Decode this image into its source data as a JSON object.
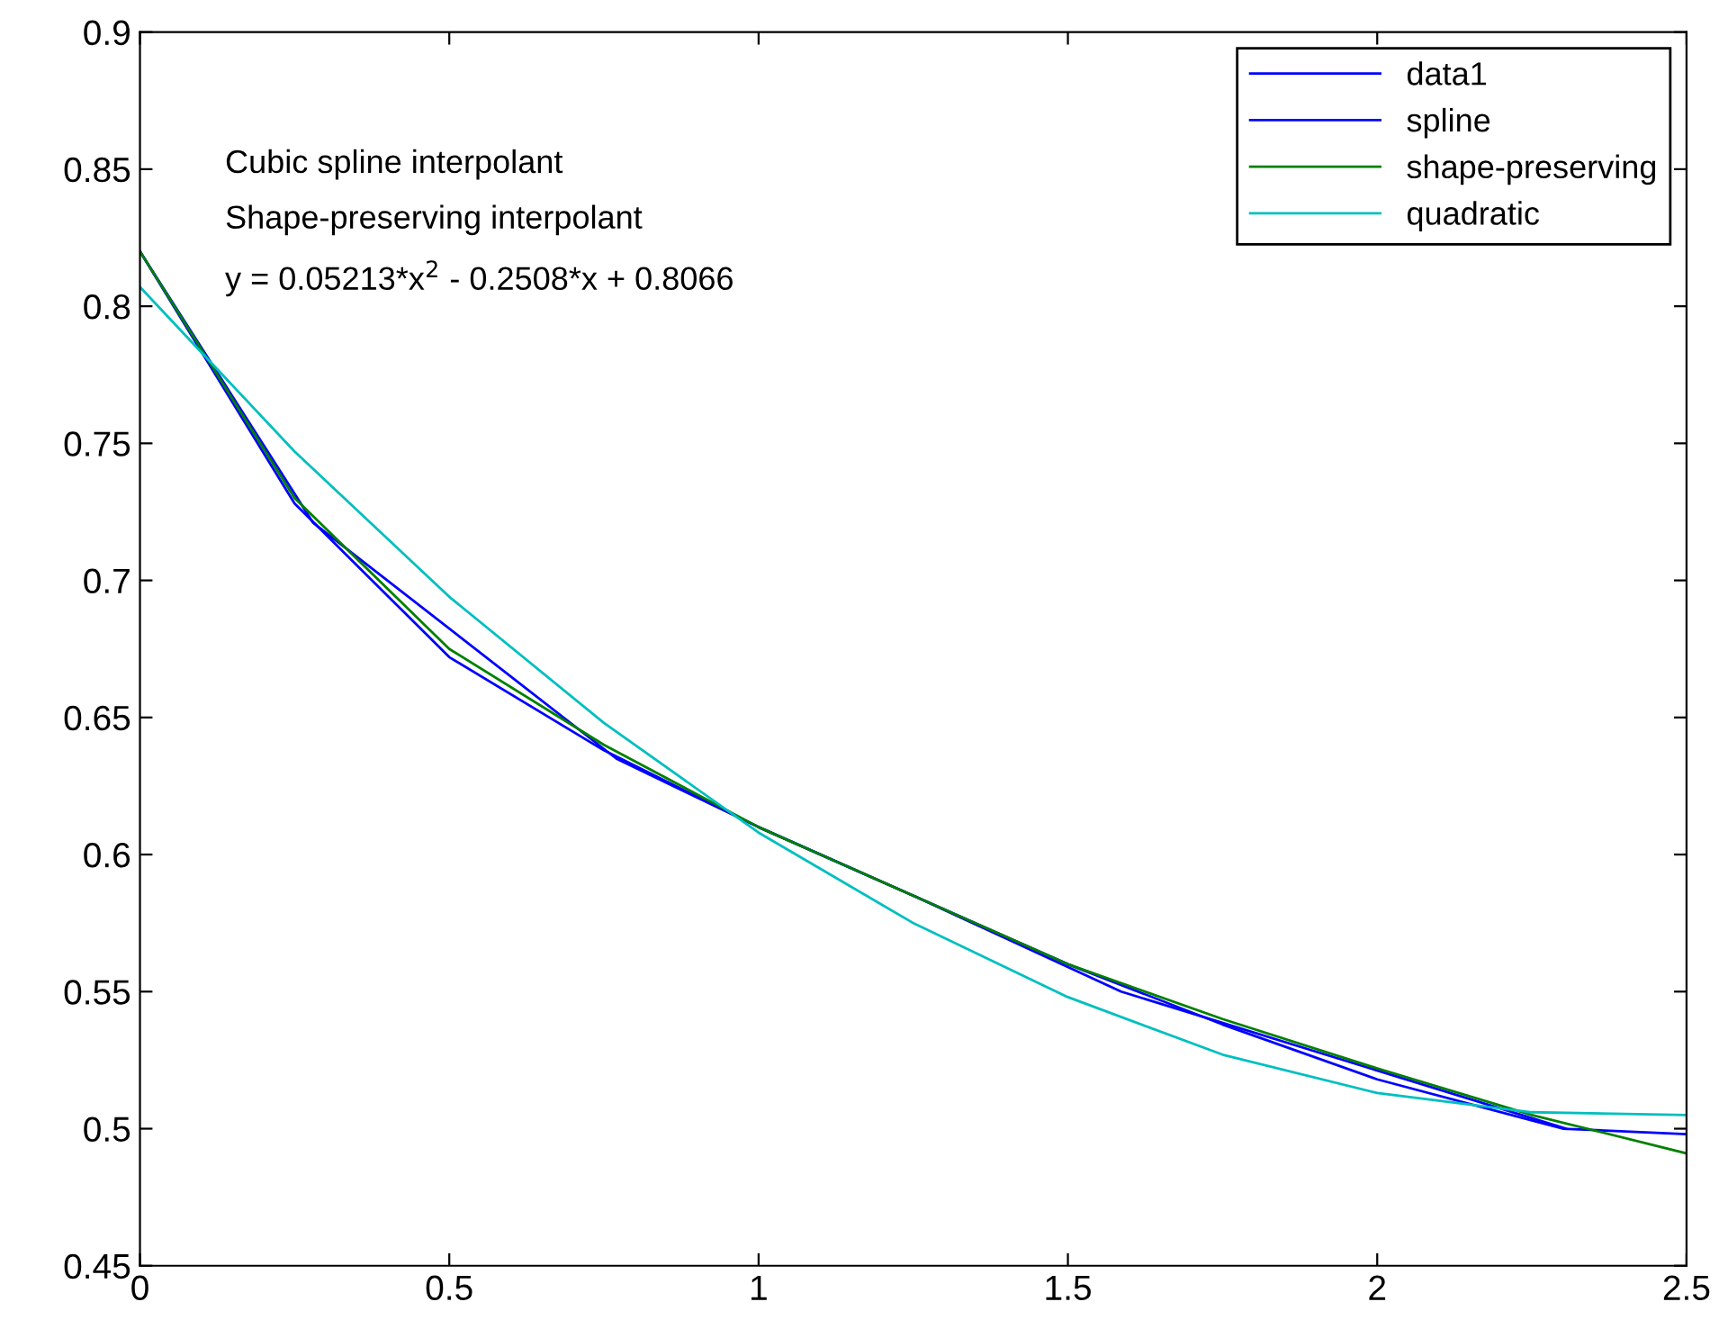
{
  "chart_data": {
    "type": "line",
    "xlim": [
      0,
      2.5
    ],
    "xticks": [
      0,
      0.5,
      1,
      1.5,
      2,
      2.5
    ],
    "ylim": [
      0.45,
      0.9
    ],
    "yticks": [
      0.45,
      0.5,
      0.55,
      0.6,
      0.65,
      0.7,
      0.75,
      0.8,
      0.85,
      0.9
    ],
    "grid": false,
    "legend": "top right",
    "marker": "none",
    "line_style": "solid",
    "annotations": [
      "Cubic spline interpolant",
      "Shape-preserving interpolant",
      "y = 0.05213*x$^{2}$ - 0.2508*x + 0.8066"
    ],
    "series": [
      {
        "name": "data1",
        "color": "#0000ff",
        "x": [
          0,
          0.28,
          0.77,
          1.0,
          1.25,
          1.586,
          2.305
        ],
        "values": [
          0.82,
          0.721,
          0.635,
          0.61,
          0.585,
          0.55,
          0.5
        ]
      },
      {
        "name": "spline",
        "color": "#0000ff",
        "x": [
          0,
          0.25,
          0.5,
          0.75,
          1.0,
          1.25,
          1.5,
          1.75,
          2.0,
          2.25,
          2.3,
          2.5
        ],
        "values": [
          0.82,
          0.728,
          0.672,
          0.638,
          0.61,
          0.585,
          0.56,
          0.538,
          0.518,
          0.503,
          0.5,
          0.498
        ]
      },
      {
        "name": "shape-preserving",
        "color": "#008000",
        "x": [
          0,
          0.25,
          0.5,
          0.75,
          1.0,
          1.25,
          1.5,
          1.75,
          2.0,
          2.25,
          2.5
        ],
        "values": [
          0.82,
          0.73,
          0.675,
          0.64,
          0.61,
          0.585,
          0.56,
          0.54,
          0.522,
          0.505,
          0.491
        ]
      },
      {
        "name": "quadratic",
        "color": "#00bfbf",
        "x": [
          0,
          0.25,
          0.5,
          0.75,
          1.0,
          1.25,
          1.5,
          1.75,
          2.0,
          2.25,
          2.5
        ],
        "values": [
          0.807,
          0.747,
          0.694,
          0.648,
          0.608,
          0.575,
          0.548,
          0.527,
          0.513,
          0.506,
          0.505
        ]
      }
    ]
  }
}
